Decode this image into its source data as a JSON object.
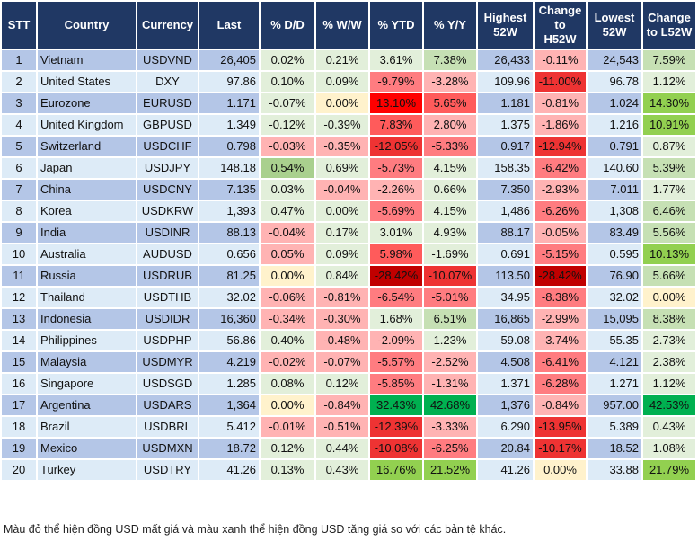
{
  "headers": [
    "STT",
    "Country",
    "Currency",
    "Last",
    "% D/D",
    "% W/W",
    "% YTD",
    "% Y/Y",
    "Highest 52W",
    "Change to H52W",
    "Lowest 52W",
    "Change to L52W"
  ],
  "colors": {
    "header_bg": "#203864",
    "row_odd": "#b4c6e7",
    "row_even": "#ddebf7",
    "lg": "#e2efda",
    "g2": "#c6e0b4",
    "g3": "#a9d08e",
    "g4": "#92d050",
    "g5": "#00b050",
    "y": "#fff2cc",
    "r1": "#ffb3b3",
    "r2": "#ff7c80",
    "r3": "#ff5b5b",
    "r4": "#ee3333",
    "r5": "#ff0000",
    "r6": "#c00000"
  },
  "rows": [
    {
      "stt": "1",
      "country": "Vietnam",
      "currency": "USDVND",
      "last": "26,405",
      "dd": "0.02%",
      "ww": "0.21%",
      "ytd": "3.61%",
      "yy": "7.38%",
      "high": "26,433",
      "h52": "-0.11%",
      "low": "24,543",
      "l52": "7.59%",
      "heat": [
        "lg",
        "lg",
        "lg",
        "g2",
        "r1",
        "g2"
      ]
    },
    {
      "stt": "2",
      "country": "United States",
      "currency": "DXY",
      "last": "97.86",
      "dd": "0.10%",
      "ww": "0.09%",
      "ytd": "-9.79%",
      "yy": "-3.28%",
      "high": "109.96",
      "h52": "-11.00%",
      "low": "96.78",
      "l52": "1.12%",
      "heat": [
        "lg",
        "lg",
        "r2",
        "r1",
        "r4",
        "lg"
      ]
    },
    {
      "stt": "3",
      "country": "Eurozone",
      "currency": "EURUSD",
      "last": "1.171",
      "dd": "-0.07%",
      "ww": "0.00%",
      "ytd": "13.10%",
      "yy": "5.65%",
      "high": "1.181",
      "h52": "-0.81%",
      "low": "1.024",
      "l52": "14.30%",
      "heat": [
        "lg",
        "y",
        "r5",
        "r3",
        "r1",
        "g4"
      ]
    },
    {
      "stt": "4",
      "country": "United Kingdom",
      "currency": "GBPUSD",
      "last": "1.349",
      "dd": "-0.12%",
      "ww": "-0.39%",
      "ytd": "7.83%",
      "yy": "2.80%",
      "high": "1.375",
      "h52": "-1.86%",
      "low": "1.216",
      "l52": "10.91%",
      "heat": [
        "lg",
        "lg",
        "r3",
        "r1",
        "r1",
        "g4"
      ]
    },
    {
      "stt": "5",
      "country": "Switzerland",
      "currency": "USDCHF",
      "last": "0.798",
      "dd": "-0.03%",
      "ww": "-0.35%",
      "ytd": "-12.05%",
      "yy": "-5.33%",
      "high": "0.917",
      "h52": "-12.94%",
      "low": "0.791",
      "l52": "0.87%",
      "heat": [
        "r1",
        "r1",
        "r4",
        "r2",
        "r4",
        "lg"
      ]
    },
    {
      "stt": "6",
      "country": "Japan",
      "currency": "USDJPY",
      "last": "148.18",
      "dd": "0.54%",
      "ww": "0.69%",
      "ytd": "-5.73%",
      "yy": "4.15%",
      "high": "158.35",
      "h52": "-6.42%",
      "low": "140.60",
      "l52": "5.39%",
      "heat": [
        "g3",
        "lg",
        "r2",
        "lg",
        "r2",
        "g2"
      ]
    },
    {
      "stt": "7",
      "country": "China",
      "currency": "USDCNY",
      "last": "7.135",
      "dd": "0.03%",
      "ww": "-0.04%",
      "ytd": "-2.26%",
      "yy": "0.66%",
      "high": "7.350",
      "h52": "-2.93%",
      "low": "7.011",
      "l52": "1.77%",
      "heat": [
        "lg",
        "r1",
        "r1",
        "lg",
        "r1",
        "lg"
      ]
    },
    {
      "stt": "8",
      "country": "Korea",
      "currency": "USDKRW",
      "last": "1,393",
      "dd": "0.47%",
      "ww": "0.00%",
      "ytd": "-5.69%",
      "yy": "4.15%",
      "high": "1,486",
      "h52": "-6.26%",
      "low": "1,308",
      "l52": "6.46%",
      "heat": [
        "lg",
        "lg",
        "r2",
        "lg",
        "r2",
        "g2"
      ]
    },
    {
      "stt": "9",
      "country": "India",
      "currency": "USDINR",
      "last": "88.13",
      "dd": "-0.04%",
      "ww": "0.17%",
      "ytd": "3.01%",
      "yy": "4.93%",
      "high": "88.17",
      "h52": "-0.05%",
      "low": "83.49",
      "l52": "5.56%",
      "heat": [
        "r1",
        "lg",
        "lg",
        "lg",
        "r1",
        "g2"
      ]
    },
    {
      "stt": "10",
      "country": "Australia",
      "currency": "AUDUSD",
      "last": "0.656",
      "dd": "0.05%",
      "ww": "0.09%",
      "ytd": "5.98%",
      "yy": "-1.69%",
      "high": "0.691",
      "h52": "-5.15%",
      "low": "0.595",
      "l52": "10.13%",
      "heat": [
        "r1",
        "lg",
        "r3",
        "lg",
        "r2",
        "g4"
      ]
    },
    {
      "stt": "11",
      "country": "Russia",
      "currency": "USDRUB",
      "last": "81.25",
      "dd": "0.00%",
      "ww": "0.84%",
      "ytd": "-28.42%",
      "yy": "-10.07%",
      "high": "113.50",
      "h52": "-28.42%",
      "low": "76.90",
      "l52": "5.66%",
      "heat": [
        "y",
        "lg",
        "r6",
        "r4",
        "r6",
        "g2"
      ]
    },
    {
      "stt": "12",
      "country": "Thailand",
      "currency": "USDTHB",
      "last": "32.02",
      "dd": "-0.06%",
      "ww": "-0.81%",
      "ytd": "-6.54%",
      "yy": "-5.01%",
      "high": "34.95",
      "h52": "-8.38%",
      "low": "32.02",
      "l52": "0.00%",
      "heat": [
        "r1",
        "r1",
        "r2",
        "r2",
        "r2",
        "y"
      ]
    },
    {
      "stt": "13",
      "country": "Indonesia",
      "currency": "USDIDR",
      "last": "16,360",
      "dd": "-0.34%",
      "ww": "-0.30%",
      "ytd": "1.68%",
      "yy": "6.51%",
      "high": "16,865",
      "h52": "-2.99%",
      "low": "15,095",
      "l52": "8.38%",
      "heat": [
        "r1",
        "r1",
        "lg",
        "g2",
        "r1",
        "g2"
      ]
    },
    {
      "stt": "14",
      "country": "Philippines",
      "currency": "USDPHP",
      "last": "56.86",
      "dd": "0.40%",
      "ww": "-0.48%",
      "ytd": "-2.09%",
      "yy": "1.23%",
      "high": "59.08",
      "h52": "-3.74%",
      "low": "55.35",
      "l52": "2.73%",
      "heat": [
        "lg",
        "r1",
        "r1",
        "lg",
        "r1",
        "lg"
      ]
    },
    {
      "stt": "15",
      "country": "Malaysia",
      "currency": "USDMYR",
      "last": "4.219",
      "dd": "-0.02%",
      "ww": "-0.07%",
      "ytd": "-5.57%",
      "yy": "-2.52%",
      "high": "4.508",
      "h52": "-6.41%",
      "low": "4.121",
      "l52": "2.38%",
      "heat": [
        "r1",
        "r1",
        "r2",
        "r1",
        "r2",
        "lg"
      ]
    },
    {
      "stt": "16",
      "country": "Singapore",
      "currency": "USDSGD",
      "last": "1.285",
      "dd": "0.08%",
      "ww": "0.12%",
      "ytd": "-5.85%",
      "yy": "-1.31%",
      "high": "1.371",
      "h52": "-6.28%",
      "low": "1.271",
      "l52": "1.12%",
      "heat": [
        "lg",
        "lg",
        "r2",
        "r1",
        "r2",
        "lg"
      ]
    },
    {
      "stt": "17",
      "country": "Argentina",
      "currency": "USDARS",
      "last": "1,364",
      "dd": "0.00%",
      "ww": "-0.84%",
      "ytd": "32.43%",
      "yy": "42.68%",
      "high": "1,376",
      "h52": "-0.84%",
      "low": "957.00",
      "l52": "42.53%",
      "heat": [
        "y",
        "r1",
        "g5",
        "g5",
        "r1",
        "g5"
      ]
    },
    {
      "stt": "18",
      "country": "Brazil",
      "currency": "USDBRL",
      "last": "5.412",
      "dd": "-0.01%",
      "ww": "-0.51%",
      "ytd": "-12.39%",
      "yy": "-3.33%",
      "high": "6.290",
      "h52": "-13.95%",
      "low": "5.389",
      "l52": "0.43%",
      "heat": [
        "r1",
        "r1",
        "r4",
        "r1",
        "r4",
        "lg"
      ]
    },
    {
      "stt": "19",
      "country": "Mexico",
      "currency": "USDMXN",
      "last": "18.72",
      "dd": "0.12%",
      "ww": "0.44%",
      "ytd": "-10.08%",
      "yy": "-6.25%",
      "high": "20.84",
      "h52": "-10.17%",
      "low": "18.52",
      "l52": "1.08%",
      "heat": [
        "lg",
        "lg",
        "r4",
        "r2",
        "r4",
        "lg"
      ]
    },
    {
      "stt": "20",
      "country": "Turkey",
      "currency": "USDTRY",
      "last": "41.26",
      "dd": "0.13%",
      "ww": "0.43%",
      "ytd": "16.76%",
      "yy": "21.52%",
      "high": "41.26",
      "h52": "0.00%",
      "low": "33.88",
      "l52": "21.79%",
      "heat": [
        "lg",
        "lg",
        "g4",
        "g4",
        "y",
        "g4"
      ]
    }
  ],
  "footnote": "Màu đỏ thể hiện đồng USD mất giá và màu xanh thể hiện đồng USD tăng giá so với các bản tệ khác."
}
